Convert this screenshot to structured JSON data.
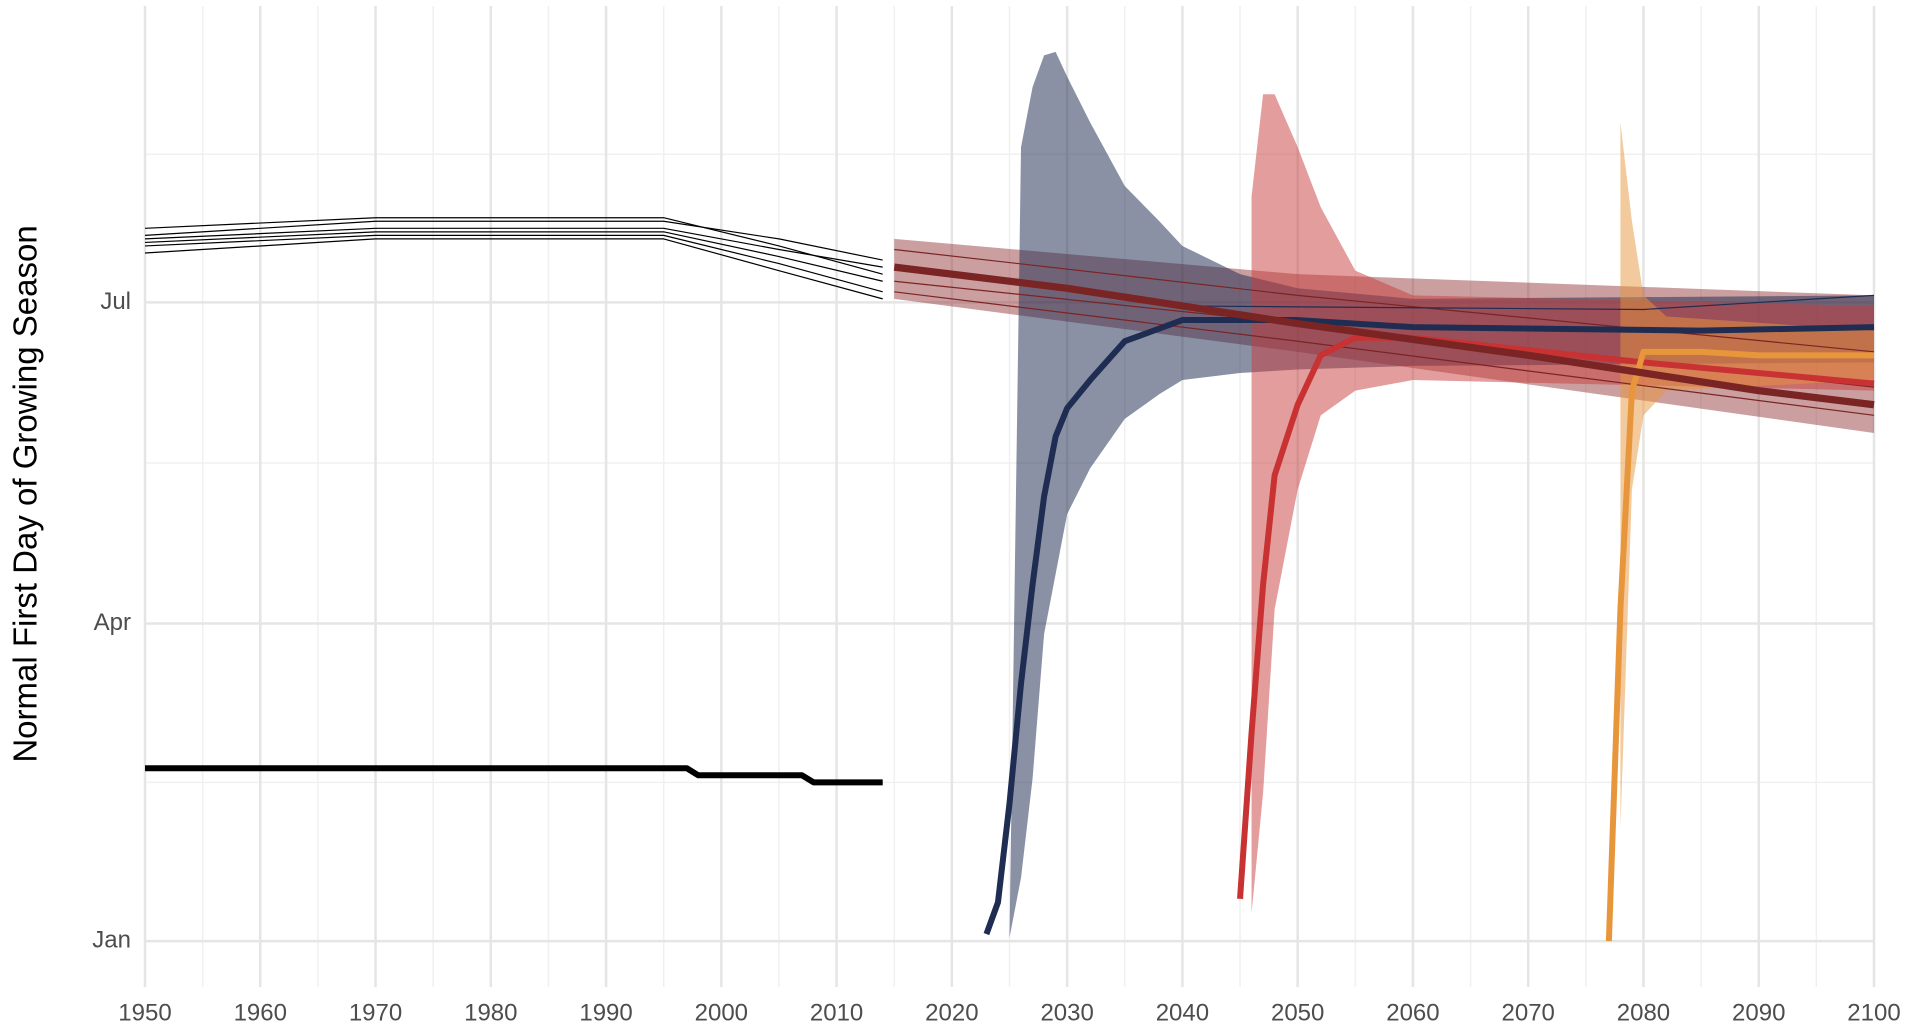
{
  "chart_data": {
    "type": "line",
    "y_label": "Normal First Day of Growing Season",
    "xlim": [
      1950,
      2100
    ],
    "ylim": [
      -12,
      266
    ],
    "xticks": [
      1950,
      1960,
      1970,
      1980,
      1990,
      2000,
      2010,
      2020,
      2030,
      2040,
      2050,
      2060,
      2070,
      2080,
      2090,
      2100
    ],
    "yticks": [
      {
        "value": 1,
        "label": "Jan"
      },
      {
        "value": 91,
        "label": "Apr"
      },
      {
        "value": 182,
        "label": "Jul"
      }
    ],
    "grid": true,
    "bands": [
      {
        "color": "#8b2a2a",
        "opacity": 0.45,
        "x": [
          2015,
          2050,
          2100
        ],
        "upper": [
          200,
          190,
          184
        ],
        "lower": [
          183,
          168,
          145
        ]
      },
      {
        "color": "#1f2d52",
        "opacity": 0.52,
        "x": [
          2025,
          2026,
          2027,
          2028,
          2029,
          2030,
          2032,
          2035,
          2038,
          2040,
          2045,
          2050,
          2060,
          2100
        ],
        "upper": [
          2,
          226,
          243,
          252,
          253,
          246,
          233,
          215,
          205,
          198,
          190,
          186,
          183,
          184
        ],
        "lower": [
          2,
          19,
          47,
          88,
          105,
          122,
          135,
          149,
          156,
          160,
          162,
          163,
          164,
          165
        ]
      },
      {
        "color": "#c83c3c",
        "opacity": 0.5,
        "x": [
          2046,
          2047,
          2048,
          2050,
          2052,
          2055,
          2060,
          2100
        ],
        "upper": [
          212,
          241,
          241,
          226,
          209,
          191,
          184,
          181
        ],
        "lower": [
          9,
          43,
          95,
          129,
          150,
          157,
          160,
          157
        ]
      },
      {
        "color": "#e8963c",
        "opacity": 0.5,
        "x": [
          2078,
          2079,
          2080,
          2082,
          2100
        ],
        "upper": [
          233,
          205,
          184,
          178,
          174
        ],
        "lower": [
          33,
          129,
          150,
          157,
          160
        ]
      }
    ],
    "series": [
      {
        "color": "#000000",
        "width": 1,
        "x": [
          1950,
          1970,
          1995,
          2005,
          2014
        ],
        "values": [
          203,
          206,
          206,
          198,
          190
        ]
      },
      {
        "color": "#000000",
        "width": 1,
        "x": [
          1950,
          1970,
          1995,
          2005,
          2014
        ],
        "values": [
          201,
          205,
          205,
          200,
          194
        ]
      },
      {
        "color": "#000000",
        "width": 1,
        "x": [
          1950,
          1970,
          1995,
          2005,
          2014
        ],
        "values": [
          200,
          203,
          203,
          197,
          192
        ]
      },
      {
        "color": "#000000",
        "width": 1,
        "x": [
          1950,
          1970,
          1995,
          2005,
          2014
        ],
        "values": [
          199,
          202,
          202,
          195,
          188
        ]
      },
      {
        "color": "#000000",
        "width": 1,
        "x": [
          1950,
          1970,
          1995,
          2005,
          2014
        ],
        "values": [
          198,
          201,
          201,
          193,
          185
        ]
      },
      {
        "color": "#000000",
        "width": 1,
        "x": [
          1950,
          1970,
          1995,
          2005,
          2014
        ],
        "values": [
          196,
          200,
          200,
          191,
          183
        ]
      },
      {
        "color": "#000000",
        "width": 5,
        "x": [
          1950,
          1997,
          1998,
          2007,
          2008,
          2014
        ],
        "values": [
          50,
          50,
          48,
          48,
          46,
          46
        ]
      },
      {
        "color": "#7a2424",
        "width": 1,
        "x": [
          2015,
          2050,
          2100
        ],
        "values": [
          197,
          184,
          168
        ]
      },
      {
        "color": "#7a2424",
        "width": 1,
        "x": [
          2015,
          2050,
          2100
        ],
        "values": [
          188,
          176,
          158
        ]
      },
      {
        "color": "#7a2424",
        "width": 1,
        "x": [
          2015,
          2050,
          2100
        ],
        "values": [
          185,
          171,
          150
        ]
      },
      {
        "color": "#1f2d52",
        "width": 1,
        "x": [
          2040,
          2080,
          2100
        ],
        "values": [
          181,
          180,
          184
        ]
      },
      {
        "color": "#1f2d52",
        "width": 5,
        "x": [
          2023,
          2024,
          2025,
          2026,
          2027,
          2028,
          2029,
          2030,
          2032,
          2035,
          2040,
          2050,
          2060,
          2085,
          2100
        ],
        "values": [
          3,
          12,
          40,
          74,
          102,
          127,
          144,
          152,
          160,
          171,
          177,
          177,
          175,
          174,
          175
        ]
      },
      {
        "color": "#c83232",
        "width": 5,
        "x": [
          2045,
          2046,
          2047,
          2048,
          2050,
          2052,
          2055,
          2060,
          2080,
          2100
        ],
        "values": [
          13,
          60,
          102,
          133,
          153,
          167,
          172,
          172,
          165,
          159
        ]
      },
      {
        "color": "#e8963c",
        "width": 5,
        "x": [
          2077,
          2078,
          2079,
          2080,
          2085,
          2090,
          2100
        ],
        "values": [
          1,
          95,
          157,
          168,
          168,
          167,
          167
        ]
      },
      {
        "color": "#7a2424",
        "width": 6,
        "x": [
          2015,
          2030,
          2050,
          2070,
          2080,
          2090,
          2100
        ],
        "values": [
          192,
          186,
          176,
          167,
          162,
          157,
          153
        ]
      }
    ]
  }
}
